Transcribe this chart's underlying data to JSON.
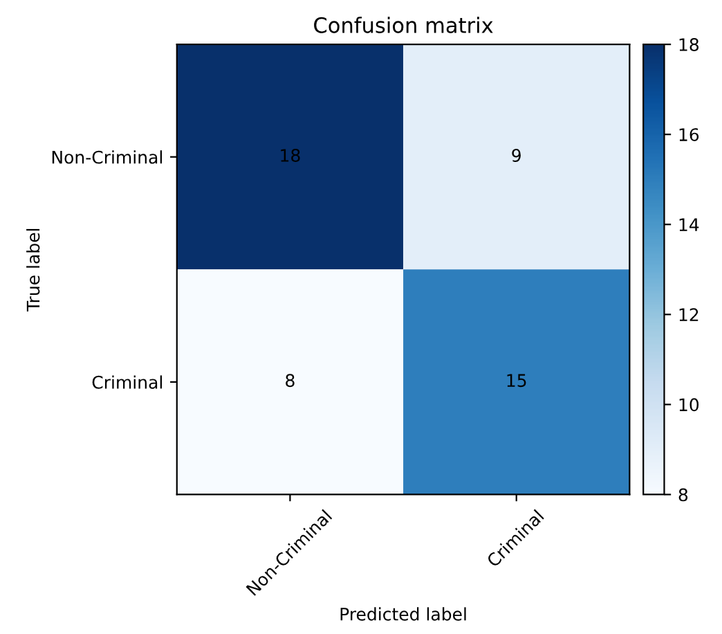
{
  "chart_data": {
    "type": "heatmap",
    "title": "Confusion matrix",
    "xlabel": "Predicted label",
    "ylabel": "True label",
    "categories": [
      "Non-Criminal",
      "Criminal"
    ],
    "y_categories": [
      "Non-Criminal",
      "Criminal"
    ],
    "cells": [
      [
        18,
        9
      ],
      [
        8,
        15
      ]
    ],
    "clim": [
      8,
      18
    ],
    "cticks": [
      8,
      10,
      12,
      14,
      16,
      18
    ],
    "data_labels": true,
    "grid": false
  }
}
